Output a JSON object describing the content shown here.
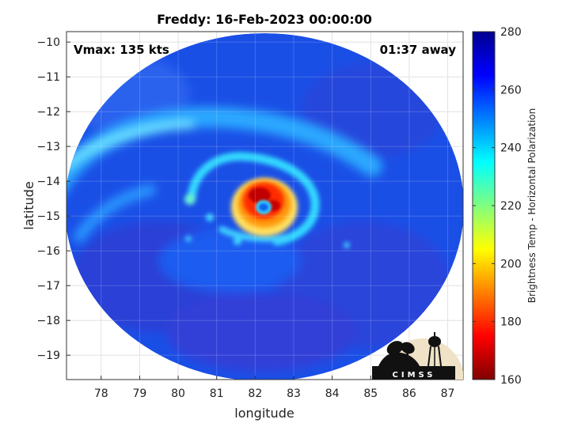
{
  "chart_data": {
    "type": "heatmap",
    "title": "Freddy: 16-Feb-2023 00:00:00",
    "annotations": {
      "vmax": "Vmax: 135 kts",
      "time_offset": "01:37 away"
    },
    "xlabel": "longitude",
    "ylabel": "latitude",
    "xlim": [
      77.1,
      87.4
    ],
    "ylim": [
      -19.7,
      -9.7
    ],
    "x_ticks": [
      78,
      79,
      80,
      81,
      82,
      83,
      84,
      85,
      86,
      87
    ],
    "y_ticks": [
      -10,
      -11,
      -12,
      -13,
      -14,
      -15,
      -16,
      -17,
      -18,
      -19
    ],
    "x_tick_labels": [
      "78",
      "79",
      "80",
      "81",
      "82",
      "83",
      "84",
      "85",
      "86",
      "87"
    ],
    "y_tick_labels": [
      "−10",
      "−11",
      "−12",
      "−13",
      "−14",
      "−15",
      "−16",
      "−17",
      "−18",
      "−19"
    ],
    "grid": true,
    "colorbar": {
      "label": "Brightness Temp - Horizontal Polarization",
      "range": [
        160,
        280
      ],
      "ticks": [
        160,
        180,
        200,
        220,
        240,
        260,
        280
      ],
      "tick_labels": [
        "160",
        "180",
        "200",
        "220",
        "240",
        "260",
        "280"
      ],
      "colormap": "jet"
    },
    "features": {
      "swath_center": [
        82.1,
        -14.8
      ],
      "eye_center": [
        82.25,
        -14.75
      ],
      "eye_temp": 250,
      "eyewall_temp": 180,
      "background_temp": 262
    },
    "logo_text": "CIMSS"
  }
}
